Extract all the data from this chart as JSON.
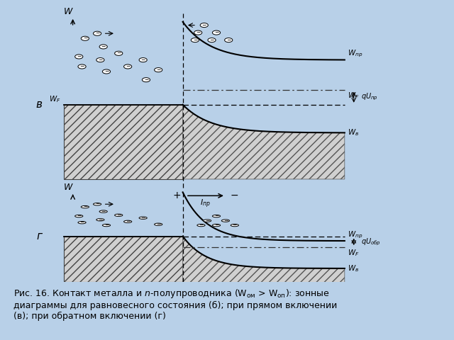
{
  "bg_color": "#b8d0e8",
  "label_v": "в",
  "label_g": "г",
  "metal_hatch_color": "#666666",
  "line_color": "#000000",
  "caption_line1": "Рис. 16. Контакт металла и n-полупроводника (Wом > Wоп): зонные диаграммы для равновесного состояния (б); при прямом включении",
  "caption_line2": "(в); при обратном включении (г)"
}
